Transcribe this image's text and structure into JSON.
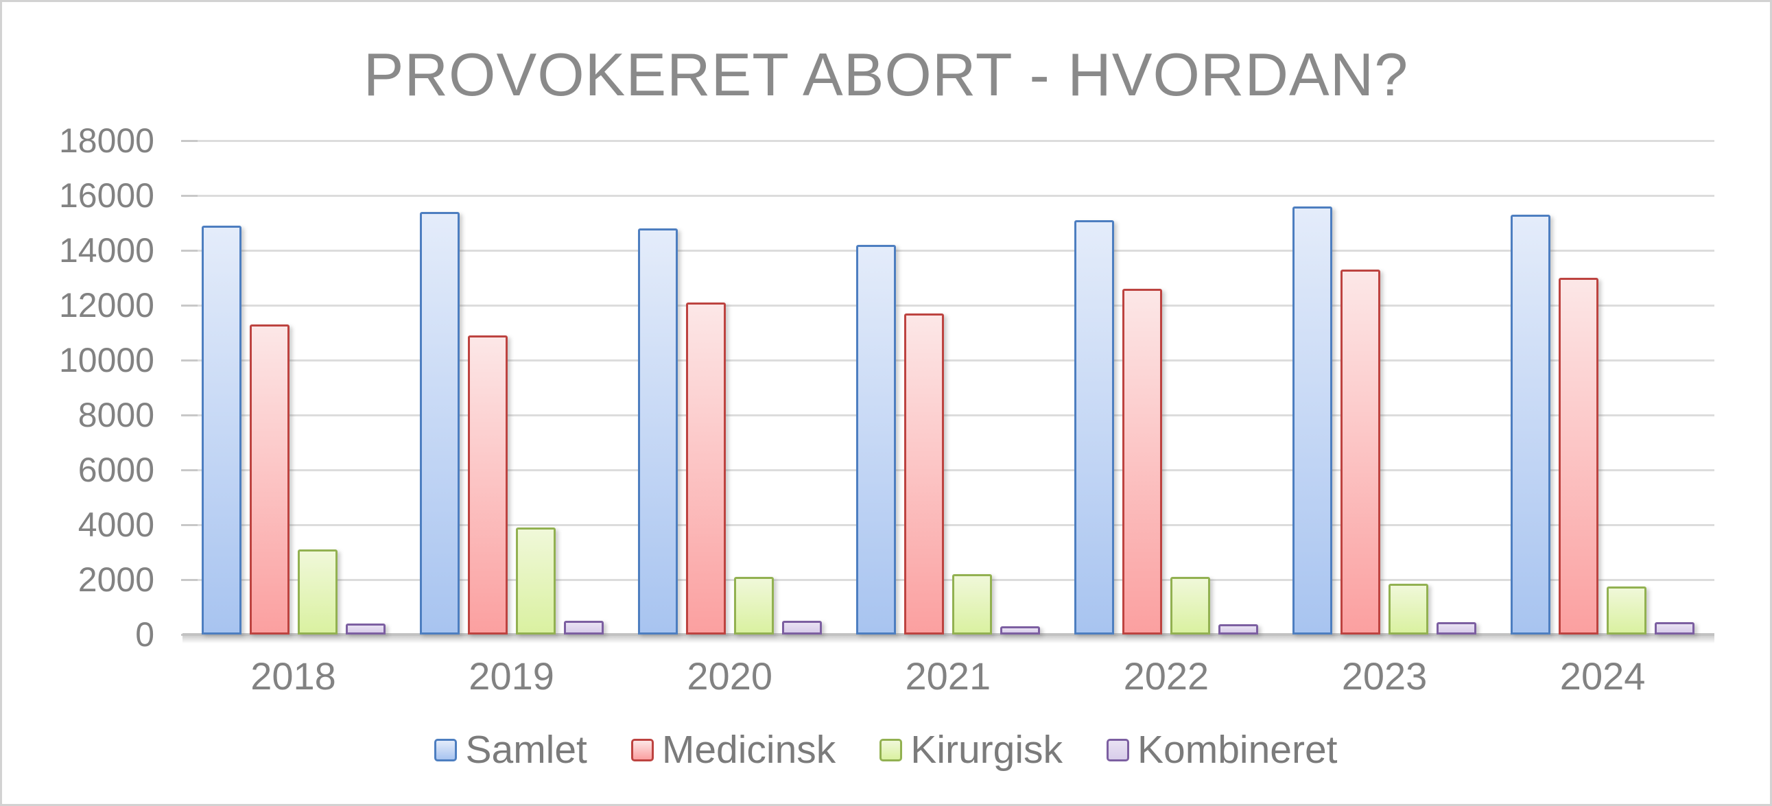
{
  "window": {
    "background_color": "#ffffff",
    "frame_border_color": "#d2d2d2"
  },
  "chart_data": {
    "type": "bar",
    "title": "PROVOKERET ABORT - HVORDAN?",
    "categories": [
      "2018",
      "2019",
      "2020",
      "2021",
      "2022",
      "2023",
      "2024"
    ],
    "series": [
      {
        "name": "Samlet",
        "values": [
          14900,
          15400,
          14800,
          14200,
          15100,
          15600,
          15300
        ],
        "border_color": "#4d7ec0",
        "fill_top": "#e4ecfa",
        "fill_bottom": "#a8c4f0"
      },
      {
        "name": "Medicinsk",
        "values": [
          11300,
          10900,
          12100,
          11700,
          12600,
          13300,
          13000
        ],
        "border_color": "#bd4340",
        "fill_top": "#fce7e7",
        "fill_bottom": "#fba0a0"
      },
      {
        "name": "Kirurgisk",
        "values": [
          3100,
          3900,
          2100,
          2200,
          2100,
          1850,
          1750
        ],
        "border_color": "#92b151",
        "fill_top": "#f0f8d9",
        "fill_bottom": "#daf1a1"
      },
      {
        "name": "Kombineret",
        "values": [
          400,
          500,
          500,
          300,
          380,
          450,
          460
        ],
        "border_color": "#7c5fa1",
        "fill_top": "#e9e2f3",
        "fill_bottom": "#d8cdea"
      }
    ],
    "ylim": [
      0,
      18000
    ],
    "ytick_step": 2000,
    "yticks": [
      "18000",
      "16000",
      "14000",
      "12000",
      "10000",
      "8000",
      "6000",
      "4000",
      "2000",
      "0"
    ],
    "grid": "on",
    "legend_position": "bottom",
    "colors": {
      "gridline": "#dcdcdc",
      "tick_mark": "#c8c8c8",
      "axis_line": "#c2c2c2",
      "axis_label": "#828282",
      "title": "#8a8a8a",
      "legend_text": "#7b7b7b"
    }
  }
}
